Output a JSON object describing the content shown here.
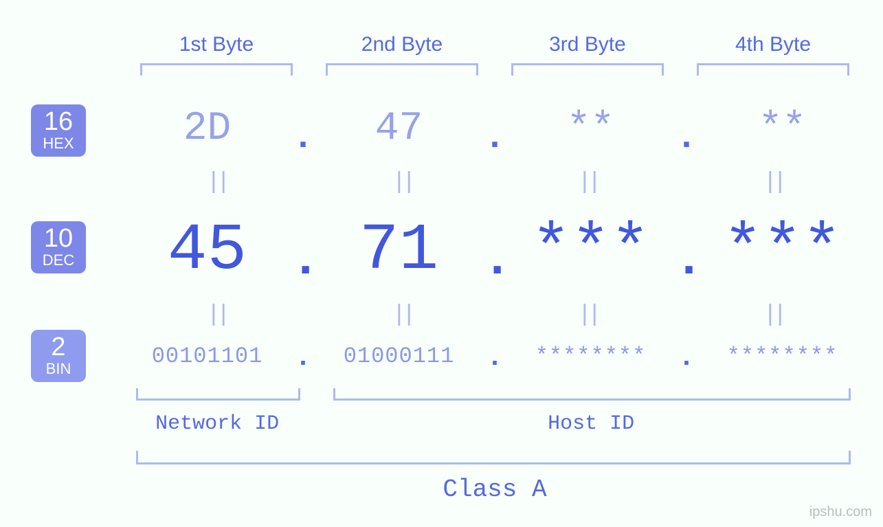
{
  "type": "infographic",
  "background_color": "#f9fffb",
  "colors": {
    "label_primary": "#5569e1",
    "value_bright": "#4157dd",
    "value_muted": "#97a2e6",
    "value_bin": "#8c98e8",
    "bracket": "#aeb9ee",
    "badge_bg": "#7d87e8",
    "badge_bg_light": "#8e9bee",
    "badge_fg": "#ffffff",
    "watermark": "#b4bfbf"
  },
  "typography": {
    "header_fontsize": 30,
    "hex_fontsize": 58,
    "dec_fontsize": 96,
    "bin_fontsize": 32,
    "eq_fontsize": 34,
    "class_fontsize": 36,
    "badge_num_fontsize": 38,
    "badge_lbl_fontsize": 22,
    "mono_family": "Courier New"
  },
  "byte_headers": [
    "1st Byte",
    "2nd Byte",
    "3rd Byte",
    "4th Byte"
  ],
  "badges": {
    "hex": {
      "num": "16",
      "lbl": "HEX"
    },
    "dec": {
      "num": "10",
      "lbl": "DEC"
    },
    "bin": {
      "num": "2",
      "lbl": "BIN"
    }
  },
  "separator": ".",
  "equals_glyph": "||",
  "rows": {
    "hex": [
      "2D",
      "47",
      "**",
      "**"
    ],
    "dec": [
      "45",
      "71",
      "***",
      "***"
    ],
    "bin": [
      "00101101",
      "01000111",
      "********",
      "********"
    ]
  },
  "id_section": {
    "network_label": "Network ID",
    "host_label": "Host ID",
    "network_span_bytes": 1,
    "host_span_bytes": 3
  },
  "class_label": "Class A",
  "watermark": "ipshu.com"
}
